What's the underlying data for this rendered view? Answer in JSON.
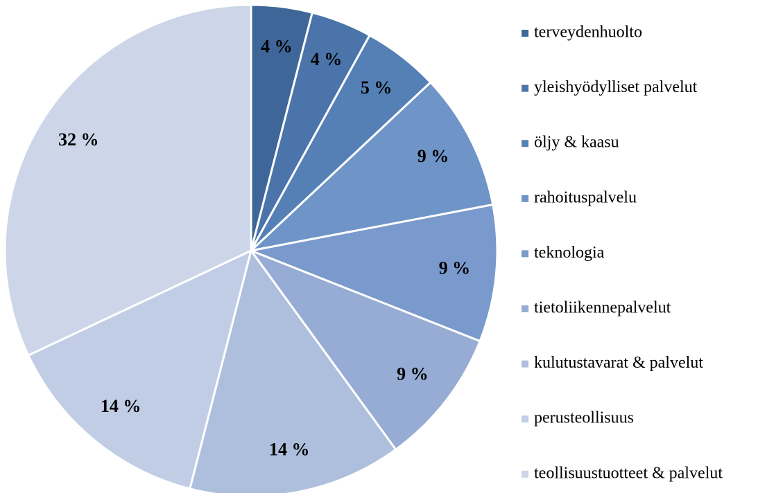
{
  "chart_data": {
    "type": "pie",
    "categories": [
      "terveydenhuolto",
      "yleishyödylliset palvelut",
      "öljy & kaasu",
      "rahoituspalvelu",
      "teknologia",
      "tietoliikennepalvelut",
      "kulutustavarat & palvelut",
      "perusteollisuus",
      "teollisuustuotteet & palvelut"
    ],
    "values": [
      4,
      4,
      5,
      9,
      9,
      9,
      14,
      14,
      32
    ],
    "value_labels": [
      "4 %",
      "4 %",
      "5 %",
      "9 %",
      "9 %",
      "9 %",
      "14 %",
      "14 %",
      "32 %"
    ],
    "colors": [
      "#3f6698",
      "#4a74aa",
      "#5580b6",
      "#6e94c8",
      "#7a99cc",
      "#97acd4",
      "#aebfdd",
      "#c0cde5",
      "#ccd6e8"
    ],
    "legend": "right"
  }
}
